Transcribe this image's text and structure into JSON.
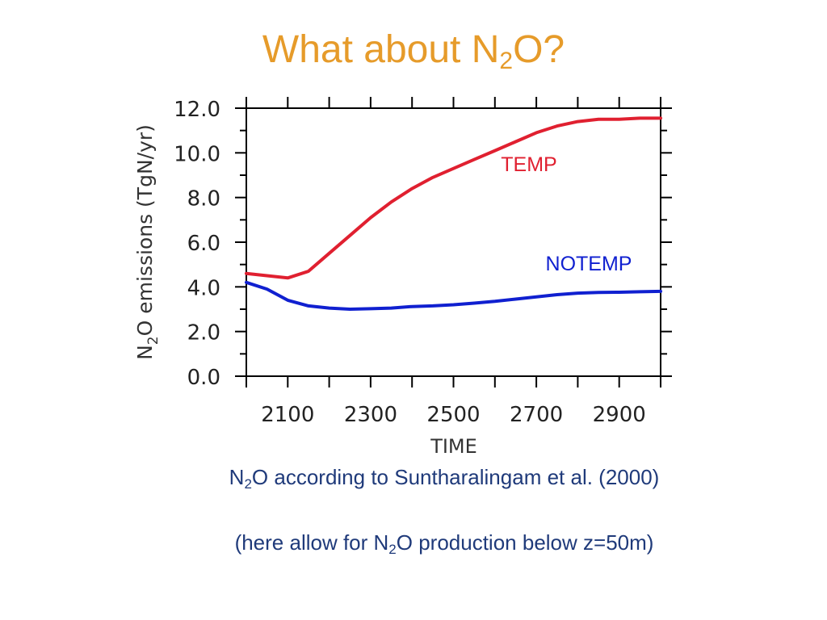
{
  "slide": {
    "title_main": "What about N",
    "title_sub": "2",
    "title_end": "O?",
    "caption1_pre": "N",
    "caption1_sub": "2",
    "caption1_post": "O according to Suntharalingam et al. (2000)",
    "caption2_pre": "(here allow for N",
    "caption2_sub": "2",
    "caption2_post": "O production below z=50m)"
  },
  "colors": {
    "title": "#e69b2a",
    "caption": "#1f3a7a",
    "temp": "#e02030",
    "notemp": "#1020d0"
  },
  "chart_data": {
    "type": "line",
    "xlabel": "TIME",
    "ylabel_parts": {
      "pre": "N",
      "sub": "2",
      "post": "O emissions  (TgN/yr)"
    },
    "xlim": [
      2000,
      3000
    ],
    "ylim": [
      0,
      12
    ],
    "xticks": [
      "2100",
      "2300",
      "2500",
      "2700",
      "2900"
    ],
    "xtick_values": [
      2100,
      2300,
      2500,
      2700,
      2900
    ],
    "yticks": [
      "0.0",
      "2.0",
      "4.0",
      "6.0",
      "8.0",
      "10.0",
      "12.0"
    ],
    "ytick_values": [
      0,
      2,
      4,
      6,
      8,
      10,
      12
    ],
    "series": [
      {
        "name": "TEMP",
        "color": "#e02030",
        "x": [
          2000,
          2050,
          2100,
          2150,
          2200,
          2250,
          2300,
          2350,
          2400,
          2450,
          2500,
          2550,
          2600,
          2650,
          2700,
          2750,
          2800,
          2850,
          2900,
          2950,
          3000
        ],
        "y": [
          4.6,
          4.5,
          4.4,
          4.7,
          5.5,
          6.3,
          7.1,
          7.8,
          8.4,
          8.9,
          9.3,
          9.7,
          10.1,
          10.5,
          10.9,
          11.2,
          11.4,
          11.5,
          11.5,
          11.55,
          11.55
        ]
      },
      {
        "name": "NOTEMP",
        "color": "#1020d0",
        "x": [
          2000,
          2050,
          2100,
          2150,
          2200,
          2250,
          2300,
          2350,
          2400,
          2450,
          2500,
          2550,
          2600,
          2650,
          2700,
          2750,
          2800,
          2850,
          2900,
          2950,
          3000
        ],
        "y": [
          4.2,
          3.9,
          3.4,
          3.15,
          3.05,
          3.0,
          3.02,
          3.05,
          3.12,
          3.15,
          3.2,
          3.27,
          3.35,
          3.45,
          3.55,
          3.65,
          3.72,
          3.75,
          3.76,
          3.78,
          3.8
        ]
      }
    ]
  }
}
